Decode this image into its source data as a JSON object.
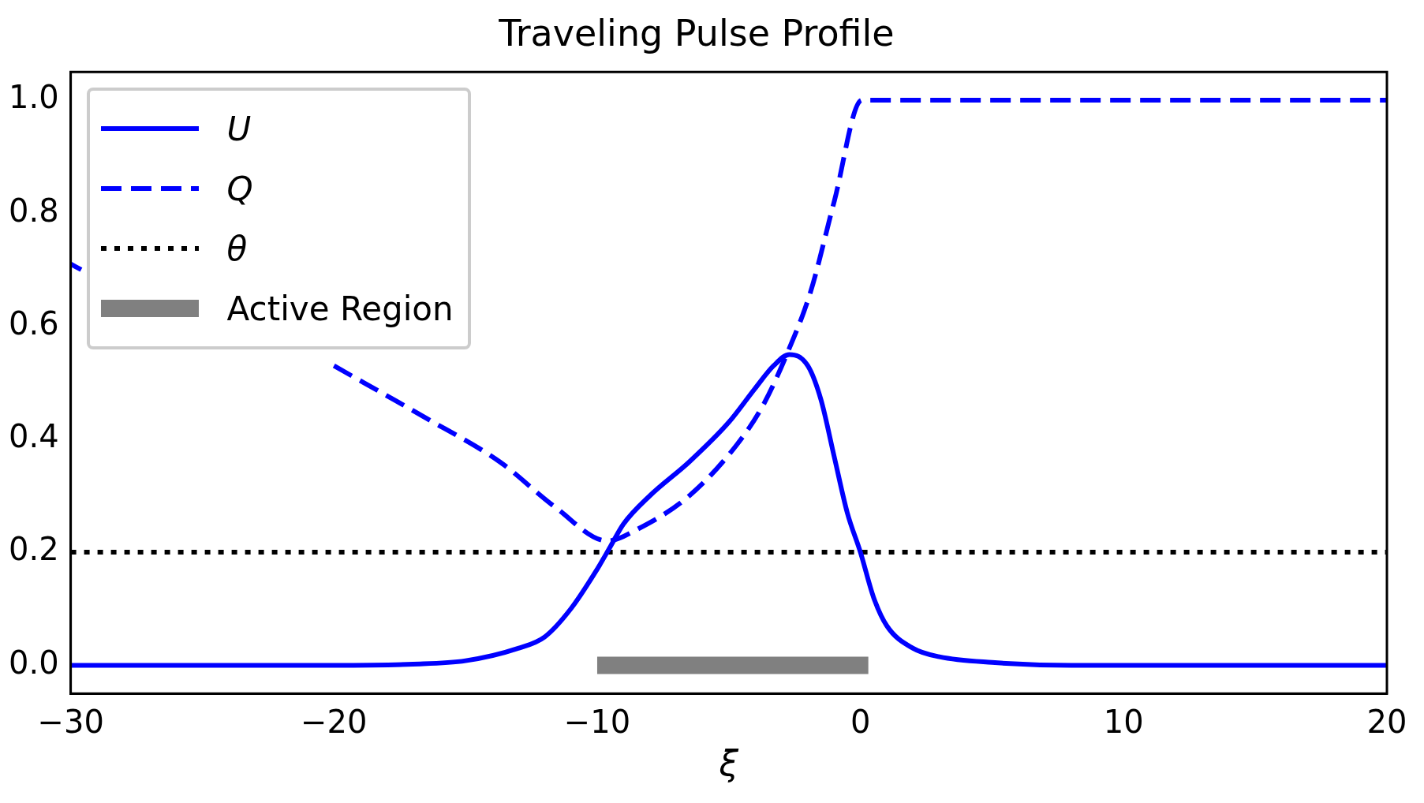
{
  "chart_data": {
    "type": "line",
    "title": "Traveling Pulse Profile",
    "xlabel": "ξ",
    "xlim": [
      -30,
      20
    ],
    "xticks": [
      {
        "value": -30,
        "label": "−30"
      },
      {
        "value": -20,
        "label": "−20"
      },
      {
        "value": -10,
        "label": "−10"
      },
      0,
      10,
      20
    ],
    "ylim": [
      -0.05,
      1.05
    ],
    "yticks": [
      {
        "value": 0,
        "label": "0.0"
      },
      0.2,
      0.4,
      0.6,
      0.8,
      {
        "value": 1,
        "label": "1.0"
      }
    ],
    "grid": false,
    "legend": "top left",
    "marker": "none",
    "series": [
      {
        "name": "U",
        "color": "#0000ff",
        "line_style": "solid",
        "x": [
          -30,
          -20,
          -17,
          -15,
          -13,
          -12,
          -11,
          -10,
          -9.5,
          -9,
          -8,
          -6.5,
          -5,
          -4,
          -3.3,
          -2.7,
          -2,
          -1.5,
          -1,
          -0.5,
          0,
          0.5,
          1,
          2,
          3,
          5,
          8,
          20
        ],
        "values": [
          0,
          0,
          0.002,
          0.008,
          0.03,
          0.05,
          0.1,
          0.17,
          0.21,
          0.25,
          0.3,
          0.36,
          0.43,
          0.49,
          0.53,
          0.55,
          0.53,
          0.47,
          0.37,
          0.27,
          0.2,
          0.12,
          0.07,
          0.03,
          0.015,
          0.005,
          0,
          0
        ]
      },
      {
        "name": "Q",
        "color": "#0000ff",
        "line_style": "dashed",
        "x": [
          -30,
          -29.6,
          -28,
          -26,
          -24,
          -22,
          -20,
          -16.6,
          -13.7,
          -11.6,
          -9.6,
          -8.5,
          -6.5,
          -4.7,
          -3.7,
          -2.8,
          -1.9,
          -1,
          0.05,
          20
        ],
        "values": [
          0.71,
          0.7,
          null,
          null,
          null,
          null,
          0.53,
          0.44,
          0.36,
          0.28,
          0.22,
          0.24,
          0.3,
          0.39,
          0.46,
          0.55,
          0.66,
          0.82,
          1,
          1
        ]
      },
      {
        "name": "θ",
        "color": "#000000",
        "line_style": "dotted",
        "x": [
          -30,
          20
        ],
        "values": [
          0.2,
          0.2
        ]
      },
      {
        "name": "Active Region",
        "color": "#808080",
        "x": [
          -10,
          0.3
        ],
        "values": [
          0,
          0
        ]
      }
    ]
  }
}
